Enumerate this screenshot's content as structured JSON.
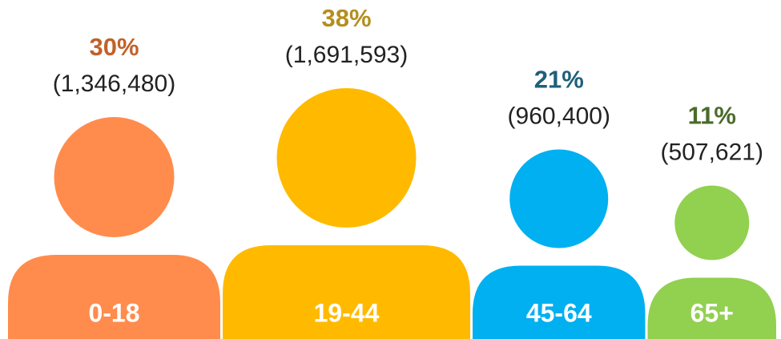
{
  "chart_data": {
    "type": "pictogram",
    "categories": [
      "0-18",
      "19-44",
      "45-64",
      "65+"
    ],
    "values": [
      30,
      38,
      21,
      11
    ],
    "value_labels": [
      "30%",
      "38%",
      "21%",
      "11%"
    ],
    "counts": [
      1346480,
      1691593,
      960400,
      507621
    ],
    "count_labels": [
      "(1,346,480)",
      "(1,691,593)",
      "(960,400)",
      "(507,621)"
    ],
    "colors": [
      "#FF8C4C",
      "#FFBA00",
      "#00B0F0",
      "#92D050"
    ],
    "label_colors": [
      "#C0622A",
      "#B38F1E",
      "#1F5F7A",
      "#4A6B2A"
    ]
  }
}
